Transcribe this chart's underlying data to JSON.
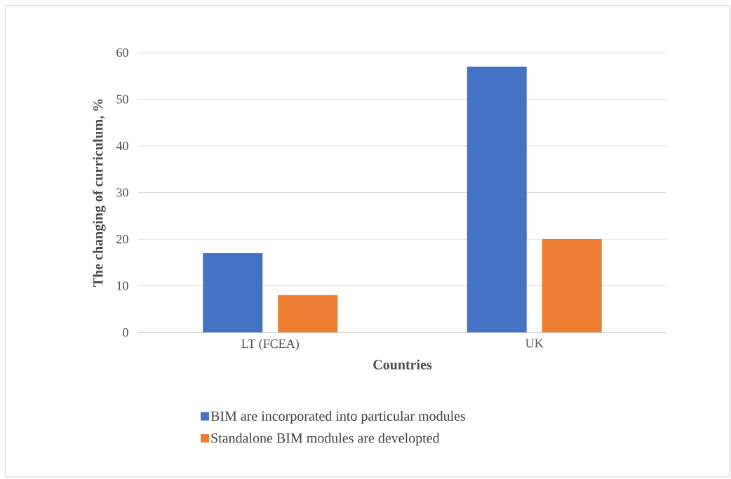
{
  "chart_data": {
    "type": "bar",
    "xlabel": "Countries",
    "ylabel": "The changing of curriculum, %",
    "categories": [
      "LT (FCEA)",
      "UK"
    ],
    "series": [
      {
        "name": "BIM are incorporated into particular modules",
        "color": "#4472c4",
        "values": [
          17,
          57
        ]
      },
      {
        "name": "Standalone BIM modules are developted",
        "color": "#ed7d31",
        "values": [
          8,
          20
        ]
      }
    ],
    "ylim": [
      0,
      60
    ],
    "yticks": [
      0,
      10,
      20,
      30,
      40,
      50,
      60
    ],
    "grid": "y",
    "legend": "bottom"
  }
}
